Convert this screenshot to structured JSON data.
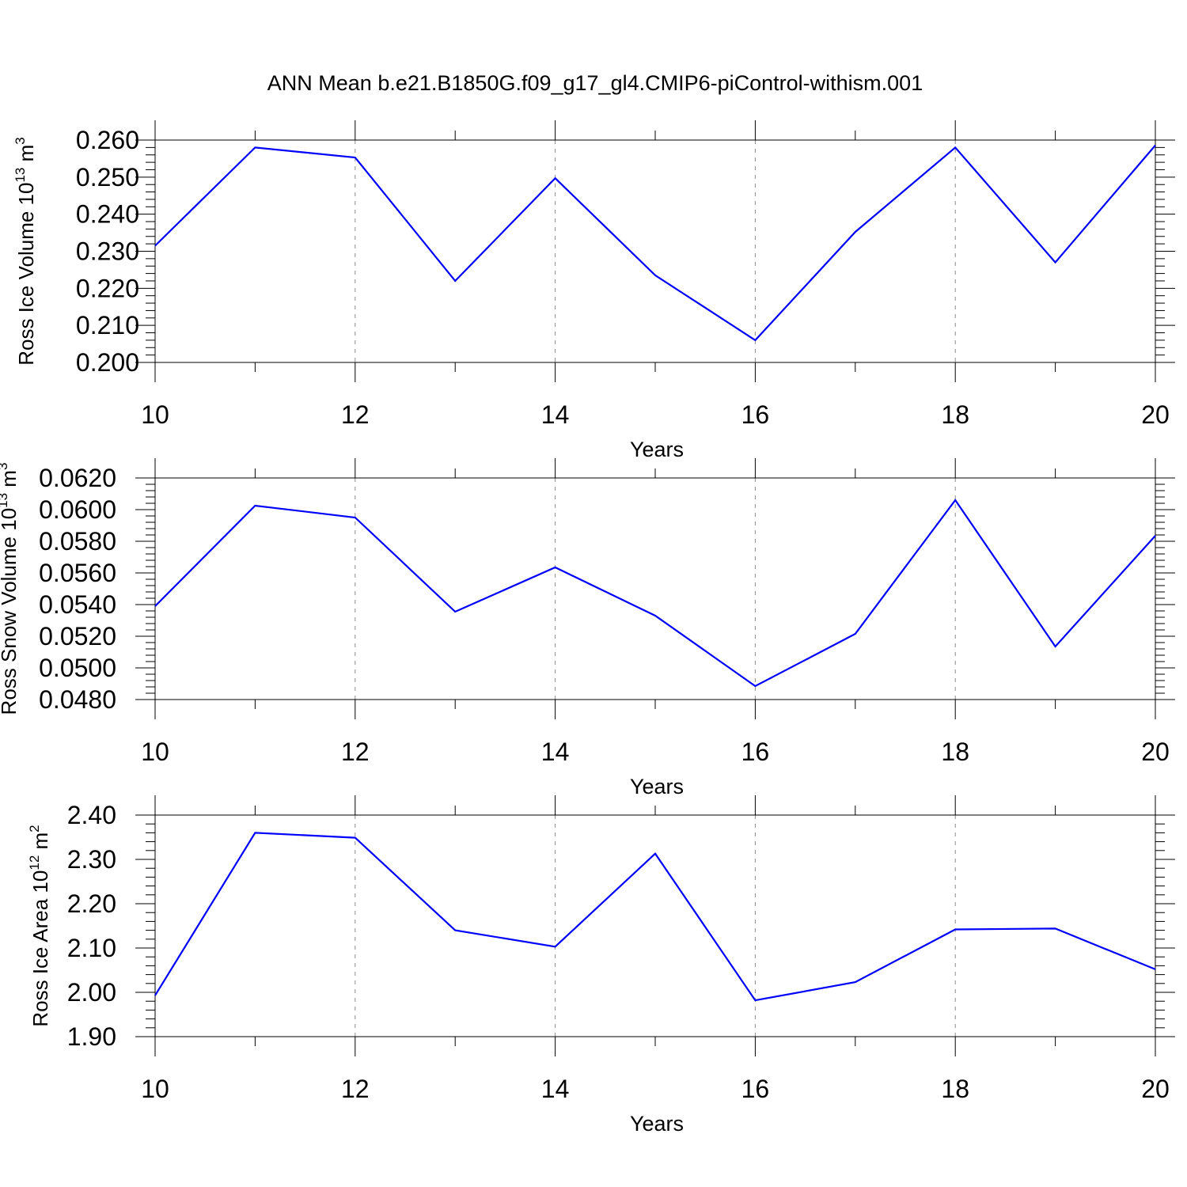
{
  "title": "ANN Mean b.e21.B1850G.f09_g17_gl4.CMIP6-piControl-withism.001",
  "line_color": "#0000ff",
  "chart_data": [
    {
      "type": "line",
      "ylabel": "Ross Ice Volume 10",
      "ylabel_exp": "13",
      "ylabel_unit": " m",
      "ylabel_unit_exp": "3",
      "xlabel": "Years",
      "x": [
        10,
        11,
        12,
        13,
        14,
        15,
        16,
        17,
        18,
        19,
        20
      ],
      "values": [
        0.2315,
        0.258,
        0.2553,
        0.222,
        0.2497,
        0.2235,
        0.206,
        0.2352,
        0.258,
        0.227,
        0.2586
      ],
      "xlim": [
        10,
        20
      ],
      "ylim": [
        0.2,
        0.26
      ],
      "xticks": [
        "10",
        "12",
        "14",
        "16",
        "18",
        "20"
      ],
      "yticks": [
        "0.200",
        "0.210",
        "0.220",
        "0.230",
        "0.240",
        "0.250",
        "0.260"
      ],
      "grid": "dashed vertical at major x ticks"
    },
    {
      "type": "line",
      "ylabel": "Ross Snow Volume 10",
      "ylabel_exp": "13",
      "ylabel_unit": " m",
      "ylabel_unit_exp": "3",
      "xlabel": "Years",
      "x": [
        10,
        11,
        12,
        13,
        14,
        15,
        16,
        17,
        18,
        19,
        20
      ],
      "values": [
        0.0539,
        0.06025,
        0.0595,
        0.05355,
        0.05635,
        0.0533,
        0.04885,
        0.05215,
        0.0606,
        0.05135,
        0.05835
      ],
      "xlim": [
        10,
        20
      ],
      "ylim": [
        0.048,
        0.062
      ],
      "xticks": [
        "10",
        "12",
        "14",
        "16",
        "18",
        "20"
      ],
      "yticks": [
        "0.0480",
        "0.0500",
        "0.0520",
        "0.0540",
        "0.0560",
        "0.0580",
        "0.0600",
        "0.0620"
      ],
      "grid": "dashed vertical at major x ticks"
    },
    {
      "type": "line",
      "ylabel": "Ross Ice Area 10",
      "ylabel_exp": "12",
      "ylabel_unit": " m",
      "ylabel_unit_exp": "2",
      "xlabel": "Years",
      "x": [
        10,
        11,
        12,
        13,
        14,
        15,
        16,
        17,
        18,
        19,
        20
      ],
      "values": [
        1.993,
        2.36,
        2.349,
        2.14,
        2.103,
        2.313,
        1.982,
        2.023,
        2.142,
        2.144,
        2.052
      ],
      "xlim": [
        10,
        20
      ],
      "ylim": [
        1.9,
        2.4
      ],
      "xticks": [
        "10",
        "12",
        "14",
        "16",
        "18",
        "20"
      ],
      "yticks": [
        "1.90",
        "2.00",
        "2.10",
        "2.20",
        "2.30",
        "2.40"
      ],
      "grid": "dashed vertical at major x ticks"
    }
  ]
}
